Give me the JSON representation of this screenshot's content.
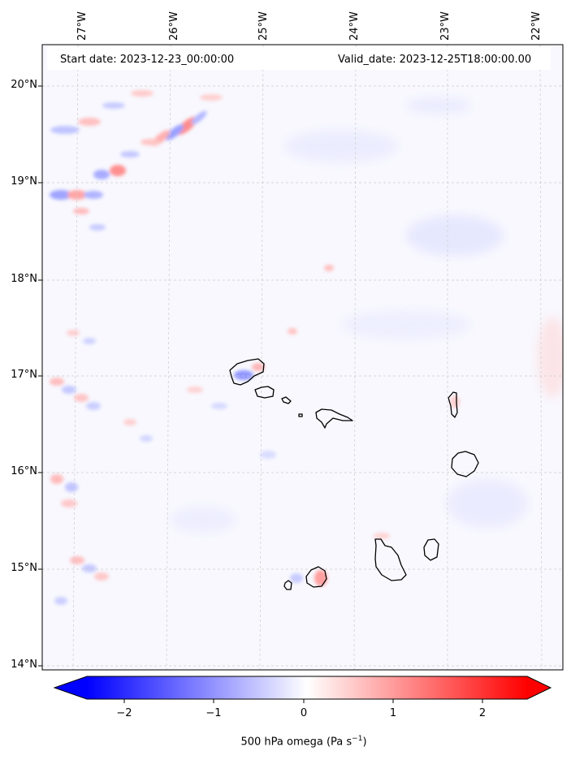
{
  "map": {
    "start_date_text": "Start date: 2023-12-23_00:00:00",
    "valid_date_text": "Valid_date: 2023-12-25T18:00:00.00",
    "lat_labels": [
      "20°N",
      "19°N",
      "18°N",
      "17°N",
      "16°N",
      "15°N",
      "14°N"
    ],
    "lon_labels": [
      "27°W",
      "26°W",
      "25°W",
      "24°W",
      "23°W",
      "22°W"
    ],
    "field": "500 hPa omega",
    "islands": [
      "Santo Antão",
      "São Vicente",
      "Santa Luzia",
      "Branco",
      "São Nicolau",
      "Sal",
      "Boa Vista",
      "Santiago",
      "Maio",
      "Fogo",
      "Brava"
    ]
  },
  "colorbar": {
    "ticks": [
      "−2",
      "−1",
      "0",
      "1",
      "2"
    ],
    "label_prefix": "500 hPa omega (Pa s",
    "label_exp": "−1",
    "label_suffix": ")",
    "colors": {
      "negative": "#0000ff",
      "neutral": "#ffffff",
      "positive": "#ff0000"
    }
  }
}
